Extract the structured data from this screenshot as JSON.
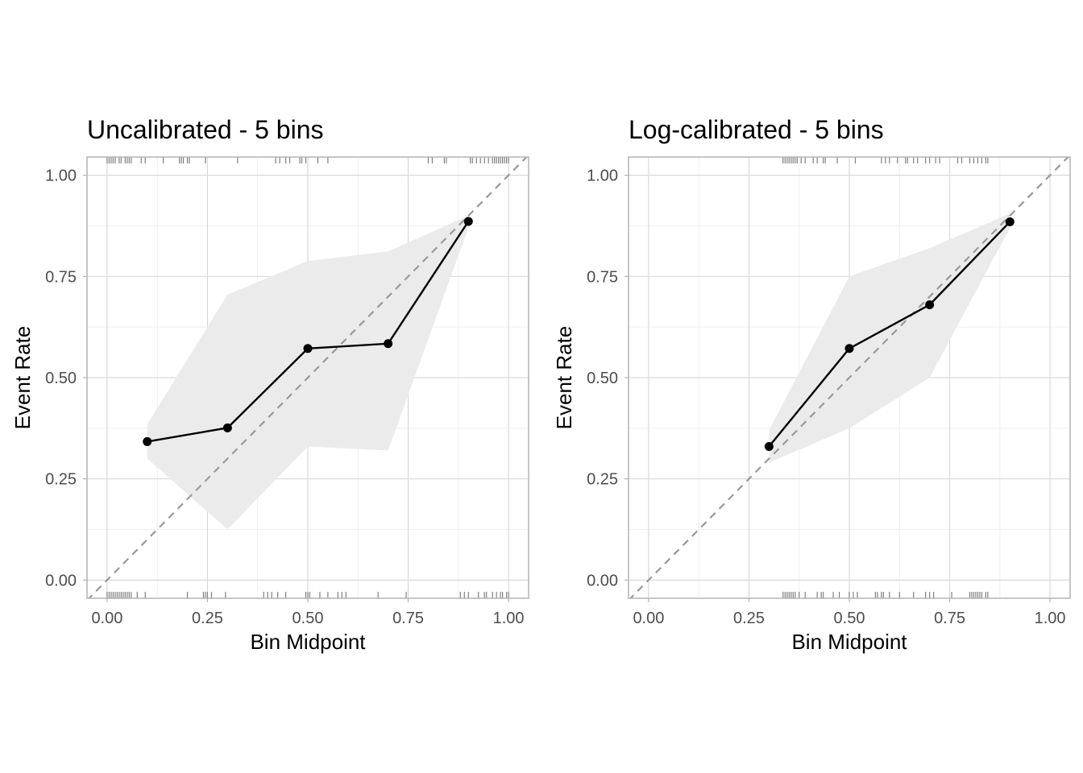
{
  "chart_data": [
    {
      "type": "line",
      "title": "Uncalibrated - 5 bins",
      "xlabel": "Bin Midpoint",
      "ylabel": "Event Rate",
      "xlim": [
        -0.05,
        1.05
      ],
      "ylim": [
        -0.045,
        1.045
      ],
      "xticks": [
        0.0,
        0.25,
        0.5,
        0.75,
        1.0
      ],
      "xtick_labels": [
        "0.00",
        "0.25",
        "0.50",
        "0.75",
        "1.00"
      ],
      "yticks": [
        0.0,
        0.25,
        0.5,
        0.75,
        1.0
      ],
      "ytick_labels": [
        "0.00",
        "0.25",
        "0.50",
        "0.75",
        "1.00"
      ],
      "grid": true,
      "reference_line": {
        "type": "diagonal",
        "style": "dashed",
        "color": "#999999"
      },
      "series": [
        {
          "x": [
            0.1,
            0.3,
            0.5,
            0.7,
            0.9
          ],
          "y": [
            0.342,
            0.376,
            0.572,
            0.584,
            0.886
          ],
          "lower": [
            0.3,
            0.125,
            0.33,
            0.32,
            0.87
          ],
          "upper": [
            0.385,
            0.705,
            0.788,
            0.812,
            0.9
          ],
          "color": "#000000",
          "band_color": "#ebebeb"
        }
      ],
      "rug_top": [
        0.0,
        0.005,
        0.01,
        0.015,
        0.02,
        0.03,
        0.035,
        0.045,
        0.05,
        0.055,
        0.06,
        0.085,
        0.095,
        0.14,
        0.18,
        0.185,
        0.19,
        0.2,
        0.205,
        0.245,
        0.325,
        0.42,
        0.43,
        0.445,
        0.455,
        0.48,
        0.485,
        0.495,
        0.525,
        0.55,
        0.8,
        0.81,
        0.84,
        0.845,
        0.905,
        0.91,
        0.92,
        0.93,
        0.94,
        0.95,
        0.96,
        0.965,
        0.97,
        0.975,
        0.98,
        0.985,
        0.99,
        0.995,
        1.0
      ],
      "rug_bottom": [
        0.0,
        0.005,
        0.01,
        0.015,
        0.02,
        0.025,
        0.03,
        0.035,
        0.04,
        0.045,
        0.05,
        0.055,
        0.06,
        0.075,
        0.095,
        0.2,
        0.24,
        0.245,
        0.25,
        0.26,
        0.295,
        0.39,
        0.4,
        0.41,
        0.425,
        0.445,
        0.495,
        0.5,
        0.505,
        0.53,
        0.55,
        0.575,
        0.585,
        0.595,
        0.675,
        0.745,
        0.88,
        0.89,
        0.9,
        0.925,
        0.94,
        0.945,
        0.96,
        0.97,
        0.98,
        0.985,
        0.995,
        1.0
      ]
    },
    {
      "type": "line",
      "title": "Log-calibrated - 5 bins",
      "xlabel": "Bin Midpoint",
      "ylabel": "Event Rate",
      "xlim": [
        -0.05,
        1.05
      ],
      "ylim": [
        -0.045,
        1.045
      ],
      "xticks": [
        0.0,
        0.25,
        0.5,
        0.75,
        1.0
      ],
      "xtick_labels": [
        "0.00",
        "0.25",
        "0.50",
        "0.75",
        "1.00"
      ],
      "yticks": [
        0.0,
        0.25,
        0.5,
        0.75,
        1.0
      ],
      "ytick_labels": [
        "0.00",
        "0.25",
        "0.50",
        "0.75",
        "1.00"
      ],
      "grid": true,
      "reference_line": {
        "type": "diagonal",
        "style": "dashed",
        "color": "#999999"
      },
      "series": [
        {
          "x": [
            0.3,
            0.5,
            0.7,
            0.9
          ],
          "y": [
            0.33,
            0.572,
            0.68,
            0.885
          ],
          "lower": [
            0.29,
            0.375,
            0.5,
            0.87
          ],
          "upper": [
            0.37,
            0.75,
            0.82,
            0.905
          ],
          "color": "#000000",
          "band_color": "#ebebeb"
        }
      ],
      "rug_top": [
        0.335,
        0.34,
        0.345,
        0.35,
        0.355,
        0.36,
        0.365,
        0.37,
        0.38,
        0.39,
        0.41,
        0.42,
        0.435,
        0.44,
        0.47,
        0.515,
        0.58,
        0.59,
        0.6,
        0.62,
        0.64,
        0.645,
        0.66,
        0.67,
        0.69,
        0.7,
        0.715,
        0.725,
        0.77,
        0.78,
        0.8,
        0.81,
        0.82,
        0.83,
        0.84,
        0.845
      ],
      "rug_bottom": [
        0.335,
        0.34,
        0.345,
        0.35,
        0.355,
        0.36,
        0.365,
        0.375,
        0.39,
        0.42,
        0.43,
        0.435,
        0.46,
        0.475,
        0.5,
        0.51,
        0.52,
        0.565,
        0.57,
        0.58,
        0.585,
        0.6,
        0.625,
        0.66,
        0.69,
        0.7,
        0.71,
        0.755,
        0.8,
        0.805,
        0.81,
        0.815,
        0.82,
        0.825,
        0.83,
        0.84,
        0.845
      ]
    }
  ]
}
